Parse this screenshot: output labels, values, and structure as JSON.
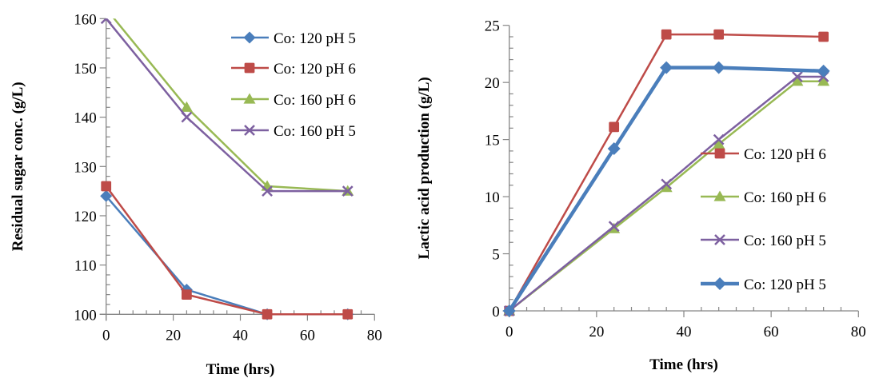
{
  "chart_data": [
    {
      "type": "line",
      "title": "",
      "xlabel": "Time (hrs)",
      "ylabel": "Residual sugar conc. (g/L)",
      "xlim": [
        0,
        80
      ],
      "ylim": [
        100,
        160
      ],
      "xticks": [
        0,
        20,
        40,
        60,
        80
      ],
      "yticks": [
        100,
        110,
        120,
        130,
        140,
        150,
        160
      ],
      "grid": false,
      "legend": "top-right",
      "series": [
        {
          "name": "Co: 120 pH 5",
          "marker": "diamond",
          "color": "#4a7ebb",
          "x": [
            0,
            24,
            48,
            72
          ],
          "y": [
            124,
            105,
            100,
            100
          ]
        },
        {
          "name": "Co: 120 pH 6",
          "marker": "square",
          "color": "#be4b48",
          "x": [
            0,
            24,
            48,
            72
          ],
          "y": [
            126,
            104,
            100,
            100
          ]
        },
        {
          "name": "Co: 160 pH 6",
          "marker": "triangle",
          "color": "#98b954",
          "x": [
            0,
            24,
            48,
            72
          ],
          "y": [
            162,
            142,
            126,
            125
          ]
        },
        {
          "name": "Co: 160 pH 5",
          "marker": "x",
          "color": "#7d60a0",
          "x": [
            0,
            24,
            48,
            72
          ],
          "y": [
            160,
            140,
            125,
            125
          ]
        }
      ]
    },
    {
      "type": "line",
      "title": "",
      "xlabel": "Time (hrs)",
      "ylabel": "Lactic acid production (g/L)",
      "xlim": [
        0,
        80
      ],
      "ylim": [
        0,
        25
      ],
      "xticks": [
        0,
        20,
        40,
        60,
        80
      ],
      "yticks": [
        0,
        5,
        10,
        15,
        20,
        25
      ],
      "grid": false,
      "legend": "center-right",
      "series": [
        {
          "name": "Co: 120 pH 6",
          "marker": "square",
          "color": "#be4b48",
          "x": [
            0,
            24,
            36,
            48,
            72
          ],
          "y": [
            0,
            16.1,
            24.2,
            24.2,
            24.0
          ]
        },
        {
          "name": "Co: 160 pH 6",
          "marker": "triangle",
          "color": "#98b954",
          "x": [
            0,
            24,
            36,
            48,
            66,
            72
          ],
          "y": [
            0,
            7.2,
            10.8,
            14.6,
            20.1,
            20.1
          ]
        },
        {
          "name": "Co: 160  pH 5",
          "marker": "x",
          "color": "#7d60a0",
          "x": [
            0,
            24,
            36,
            48,
            66,
            72
          ],
          "y": [
            0,
            7.4,
            11.1,
            15.0,
            20.5,
            20.5
          ]
        },
        {
          "name": "Co: 120 pH 5",
          "marker": "diamond",
          "color": "#4a7ebb",
          "bold": true,
          "x": [
            0,
            24,
            36,
            48,
            72
          ],
          "y": [
            0,
            14.2,
            21.3,
            21.3,
            21.0
          ]
        }
      ]
    }
  ]
}
